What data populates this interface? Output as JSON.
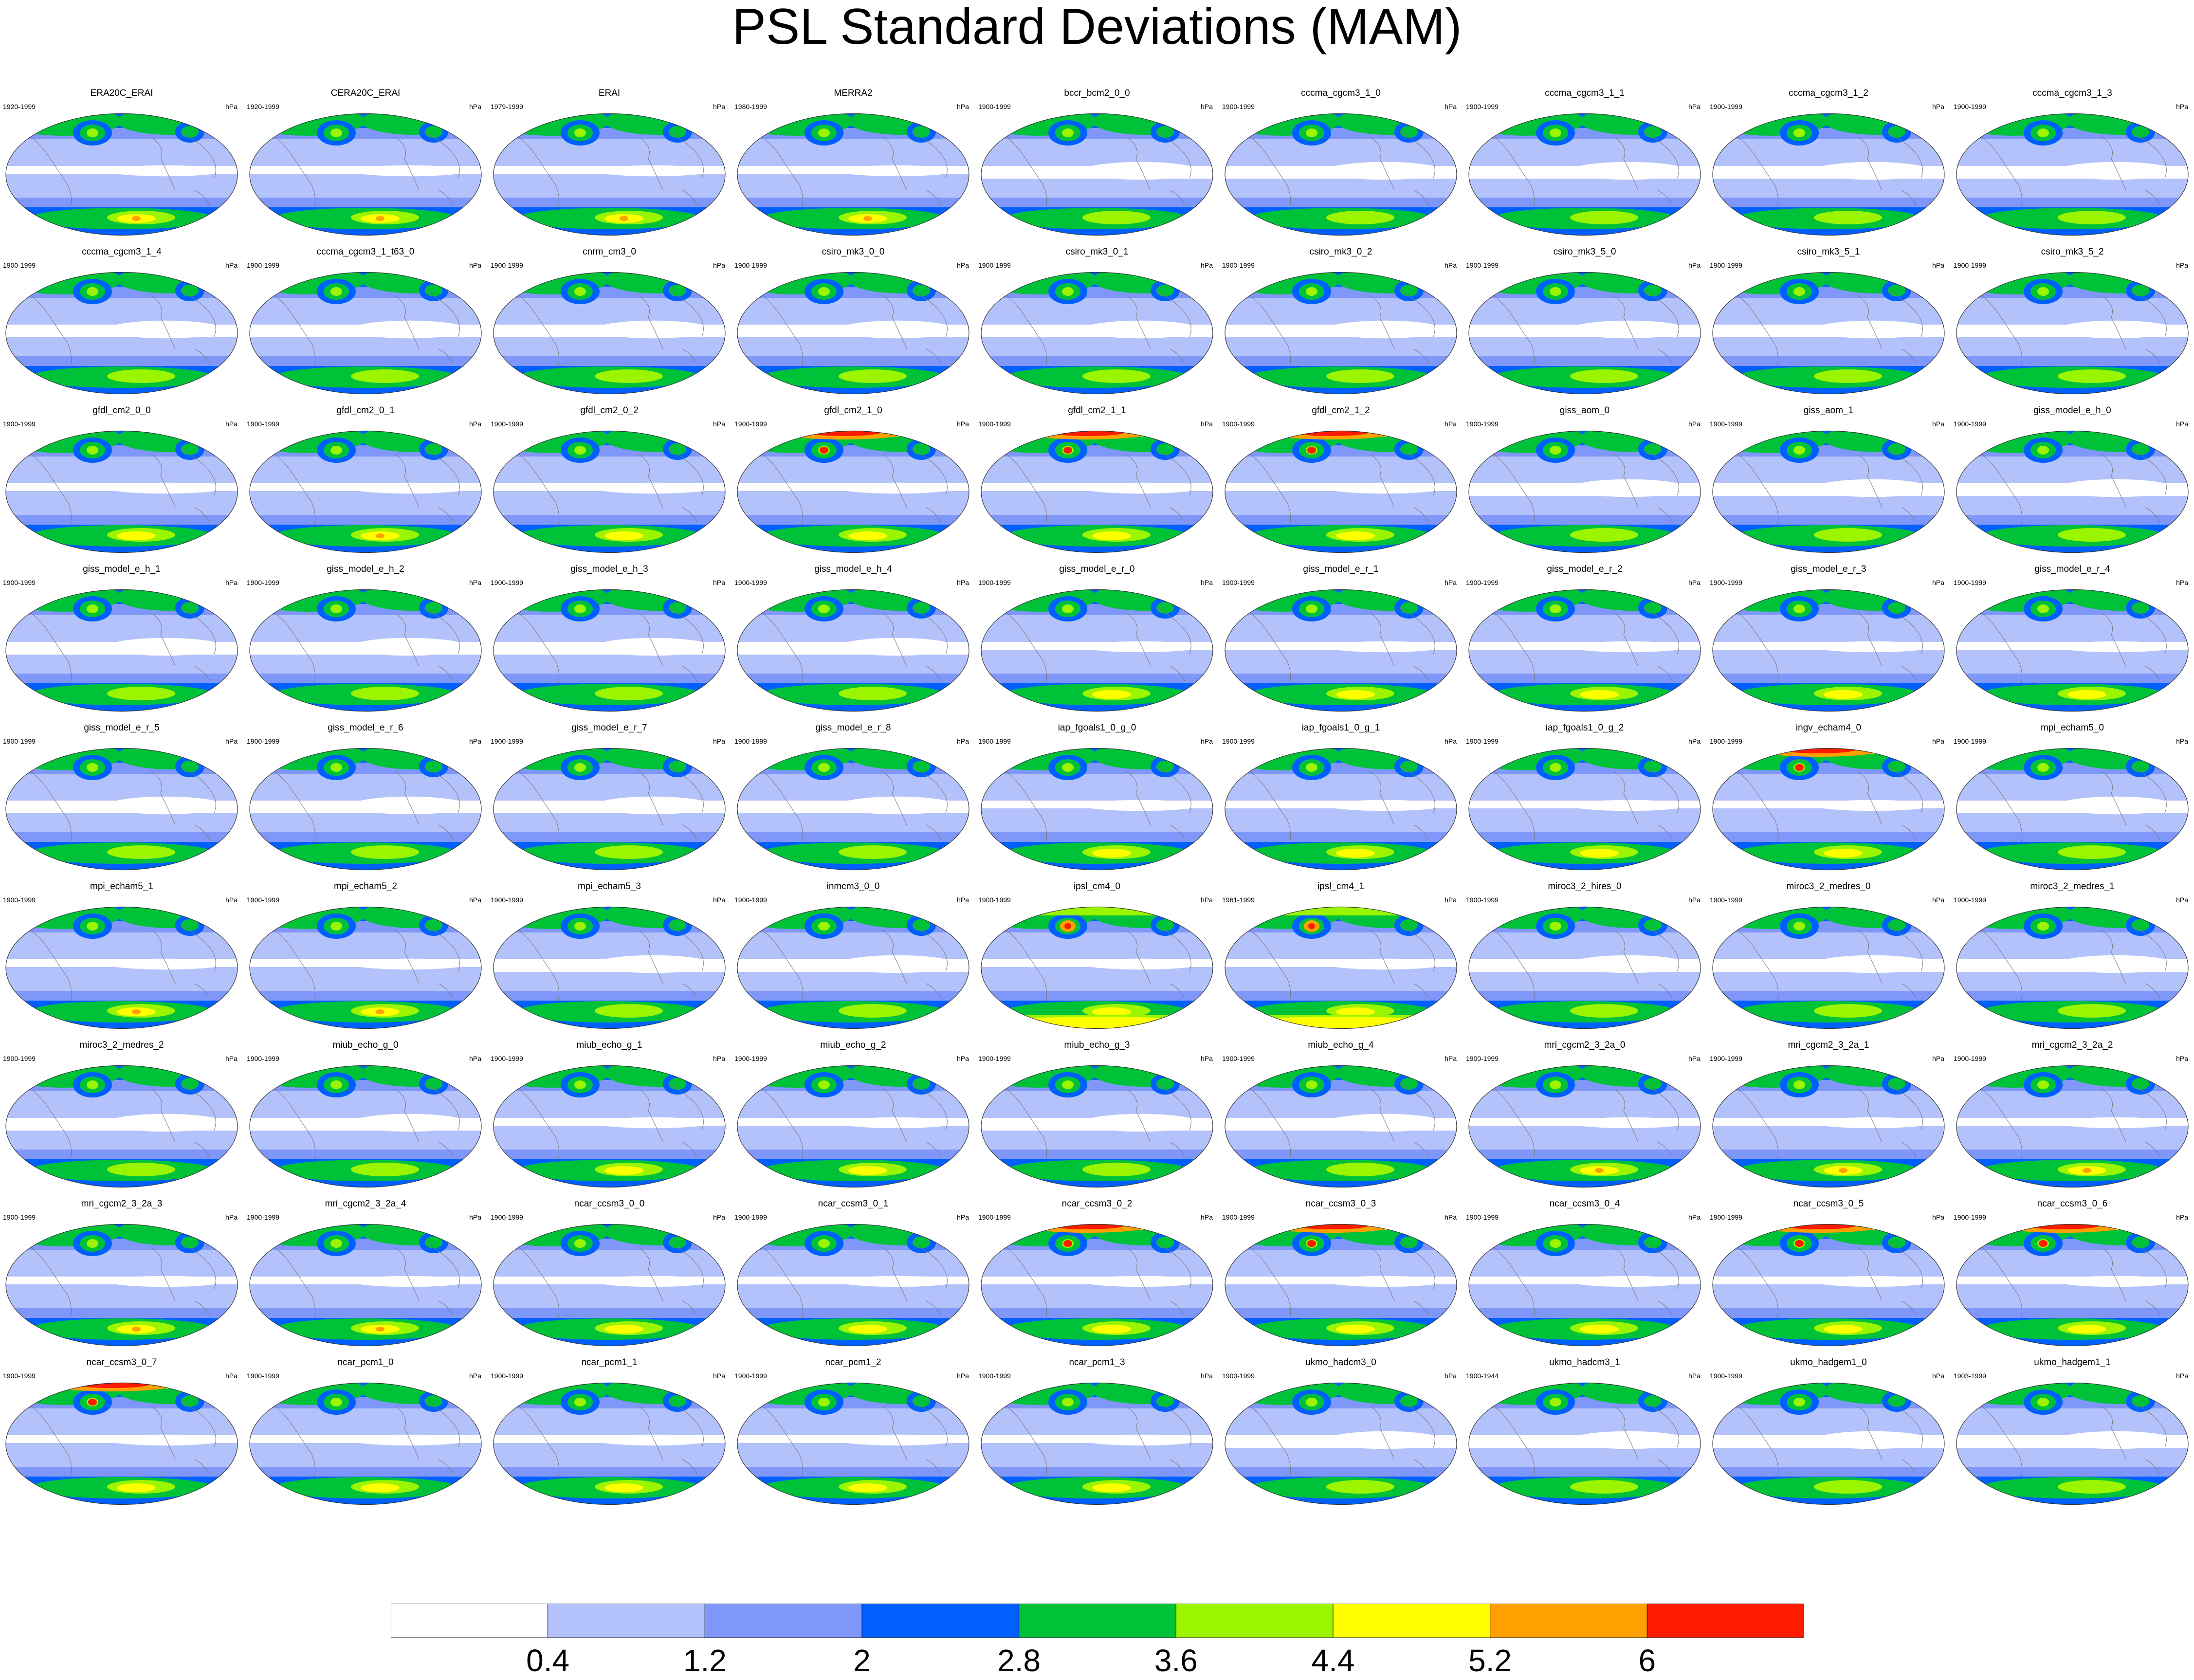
{
  "title": "PSL Standard Deviations (MAM)",
  "unit": "hPa",
  "colorbar": {
    "colors": [
      "#ffffff",
      "#b3c2fa",
      "#8097fa",
      "#0060ff",
      "#00c239",
      "#9bf400",
      "#ffff00",
      "#ffa000",
      "#ff1a00"
    ],
    "labels": [
      "0.4",
      "1.2",
      "2",
      "2.8",
      "3.6",
      "4.4",
      "5.2",
      "6"
    ]
  },
  "panels": [
    {
      "name": "ERA20C_ERAI",
      "period": "1920-1999",
      "pattern": 3
    },
    {
      "name": "CERA20C_ERAI",
      "period": "1920-1999",
      "pattern": 3
    },
    {
      "name": "ERAI",
      "period": "1979-1999",
      "pattern": 3
    },
    {
      "name": "MERRA2",
      "period": "1980-1999",
      "pattern": 3
    },
    {
      "name": "bccr_bcm2_0_0",
      "period": "1900-1999",
      "pattern": 1
    },
    {
      "name": "cccma_cgcm3_1_0",
      "period": "1900-1999",
      "pattern": 1
    },
    {
      "name": "cccma_cgcm3_1_1",
      "period": "1900-1999",
      "pattern": 1
    },
    {
      "name": "cccma_cgcm3_1_2",
      "period": "1900-1999",
      "pattern": 1
    },
    {
      "name": "cccma_cgcm3_1_3",
      "period": "1900-1999",
      "pattern": 1
    },
    {
      "name": "cccma_cgcm3_1_4",
      "period": "1900-1999",
      "pattern": 1
    },
    {
      "name": "cccma_cgcm3_1_t63_0",
      "period": "1900-1999",
      "pattern": 1
    },
    {
      "name": "cnrm_cm3_0",
      "period": "1900-1999",
      "pattern": 1
    },
    {
      "name": "csiro_mk3_0_0",
      "period": "1900-1999",
      "pattern": 0
    },
    {
      "name": "csiro_mk3_0_1",
      "period": "1900-1999",
      "pattern": 0
    },
    {
      "name": "csiro_mk3_0_2",
      "period": "1900-1999",
      "pattern": 0
    },
    {
      "name": "csiro_mk3_5_0",
      "period": "1900-1999",
      "pattern": 0
    },
    {
      "name": "csiro_mk3_5_1",
      "period": "1900-1999",
      "pattern": 0
    },
    {
      "name": "csiro_mk3_5_2",
      "period": "1900-1999",
      "pattern": 0
    },
    {
      "name": "gfdl_cm2_0_0",
      "period": "1900-1999",
      "pattern": 2
    },
    {
      "name": "gfdl_cm2_0_1",
      "period": "1900-1999",
      "pattern": 3
    },
    {
      "name": "gfdl_cm2_0_2",
      "period": "1900-1999",
      "pattern": 2
    },
    {
      "name": "gfdl_cm2_1_0",
      "period": "1900-1999",
      "pattern": 4
    },
    {
      "name": "gfdl_cm2_1_1",
      "period": "1900-1999",
      "pattern": 4
    },
    {
      "name": "gfdl_cm2_1_2",
      "period": "1900-1999",
      "pattern": 4
    },
    {
      "name": "giss_aom_0",
      "period": "1900-1999",
      "pattern": 1
    },
    {
      "name": "giss_aom_1",
      "period": "1900-1999",
      "pattern": 1
    },
    {
      "name": "giss_model_e_h_0",
      "period": "1900-1999",
      "pattern": 0
    },
    {
      "name": "giss_model_e_h_1",
      "period": "1900-1999",
      "pattern": 0
    },
    {
      "name": "giss_model_e_h_2",
      "period": "1900-1999",
      "pattern": 0
    },
    {
      "name": "giss_model_e_h_3",
      "period": "1900-1999",
      "pattern": 0
    },
    {
      "name": "giss_model_e_h_4",
      "period": "1900-1999",
      "pattern": 0
    },
    {
      "name": "giss_model_e_r_0",
      "period": "1900-1999",
      "pattern": 2
    },
    {
      "name": "giss_model_e_r_1",
      "period": "1900-1999",
      "pattern": 2
    },
    {
      "name": "giss_model_e_r_2",
      "period": "1900-1999",
      "pattern": 2
    },
    {
      "name": "giss_model_e_r_3",
      "period": "1900-1999",
      "pattern": 2
    },
    {
      "name": "giss_model_e_r_4",
      "period": "1900-1999",
      "pattern": 2
    },
    {
      "name": "giss_model_e_r_5",
      "period": "1900-1999",
      "pattern": 0
    },
    {
      "name": "giss_model_e_r_6",
      "period": "1900-1999",
      "pattern": 0
    },
    {
      "name": "giss_model_e_r_7",
      "period": "1900-1999",
      "pattern": 0
    },
    {
      "name": "giss_model_e_r_8",
      "period": "1900-1999",
      "pattern": 0
    },
    {
      "name": "iap_fgoals1_0_g_0",
      "period": "1900-1999",
      "pattern": 2
    },
    {
      "name": "iap_fgoals1_0_g_1",
      "period": "1900-1999",
      "pattern": 2
    },
    {
      "name": "iap_fgoals1_0_g_2",
      "period": "1900-1999",
      "pattern": 2
    },
    {
      "name": "ingv_echam4_0",
      "period": "1900-1999",
      "pattern": 4
    },
    {
      "name": "mpi_echam5_0",
      "period": "1900-1999",
      "pattern": 1
    },
    {
      "name": "mpi_echam5_1",
      "period": "1900-1999",
      "pattern": 3
    },
    {
      "name": "mpi_echam5_2",
      "period": "1900-1999",
      "pattern": 3
    },
    {
      "name": "mpi_echam5_3",
      "period": "1900-1999",
      "pattern": 1
    },
    {
      "name": "inmcm3_0_0",
      "period": "1900-1999",
      "pattern": 1
    },
    {
      "name": "ipsl_cm4_0",
      "period": "1900-1999",
      "pattern": 5
    },
    {
      "name": "ipsl_cm4_1",
      "period": "1961-1999",
      "pattern": 5
    },
    {
      "name": "miroc3_2_hires_0",
      "period": "1900-1999",
      "pattern": 1
    },
    {
      "name": "miroc3_2_medres_0",
      "period": "1900-1999",
      "pattern": 1
    },
    {
      "name": "miroc3_2_medres_1",
      "period": "1900-1999",
      "pattern": 1
    },
    {
      "name": "miroc3_2_medres_2",
      "period": "1900-1999",
      "pattern": 1
    },
    {
      "name": "miub_echo_g_0",
      "period": "1900-1999",
      "pattern": 1
    },
    {
      "name": "miub_echo_g_1",
      "period": "1900-1999",
      "pattern": 2
    },
    {
      "name": "miub_echo_g_2",
      "period": "1900-1999",
      "pattern": 2
    },
    {
      "name": "miub_echo_g_3",
      "period": "1900-1999",
      "pattern": 1
    },
    {
      "name": "miub_echo_g_4",
      "period": "1900-1999",
      "pattern": 1
    },
    {
      "name": "mri_cgcm2_3_2a_0",
      "period": "1900-1999",
      "pattern": 3
    },
    {
      "name": "mri_cgcm2_3_2a_1",
      "period": "1900-1999",
      "pattern": 3
    },
    {
      "name": "mri_cgcm2_3_2a_2",
      "period": "1900-1999",
      "pattern": 3
    },
    {
      "name": "mri_cgcm2_3_2a_3",
      "period": "1900-1999",
      "pattern": 3
    },
    {
      "name": "mri_cgcm2_3_2a_4",
      "period": "1900-1999",
      "pattern": 3
    },
    {
      "name": "ncar_ccsm3_0_0",
      "period": "1900-1999",
      "pattern": 2
    },
    {
      "name": "ncar_ccsm3_0_1",
      "period": "1900-1999",
      "pattern": 2
    },
    {
      "name": "ncar_ccsm3_0_2",
      "period": "1900-1999",
      "pattern": 4
    },
    {
      "name": "ncar_ccsm3_0_3",
      "period": "1900-1999",
      "pattern": 4
    },
    {
      "name": "ncar_ccsm3_0_4",
      "period": "1900-1999",
      "pattern": 2
    },
    {
      "name": "ncar_ccsm3_0_5",
      "period": "1900-1999",
      "pattern": 4
    },
    {
      "name": "ncar_ccsm3_0_6",
      "period": "1900-1999",
      "pattern": 4
    },
    {
      "name": "ncar_ccsm3_0_7",
      "period": "1900-1999",
      "pattern": 4
    },
    {
      "name": "ncar_pcm1_0",
      "period": "1900-1999",
      "pattern": 2
    },
    {
      "name": "ncar_pcm1_1",
      "period": "1900-1999",
      "pattern": 2
    },
    {
      "name": "ncar_pcm1_2",
      "period": "1900-1999",
      "pattern": 2
    },
    {
      "name": "ncar_pcm1_3",
      "period": "1900-1999",
      "pattern": 2
    },
    {
      "name": "ukmo_hadcm3_0",
      "period": "1900-1999",
      "pattern": 0
    },
    {
      "name": "ukmo_hadcm3_1",
      "period": "1900-1944",
      "pattern": 0
    },
    {
      "name": "ukmo_hadgem1_0",
      "period": "1900-1999",
      "pattern": 0
    },
    {
      "name": "ukmo_hadgem1_1",
      "period": "1903-1999",
      "pattern": 0
    }
  ]
}
